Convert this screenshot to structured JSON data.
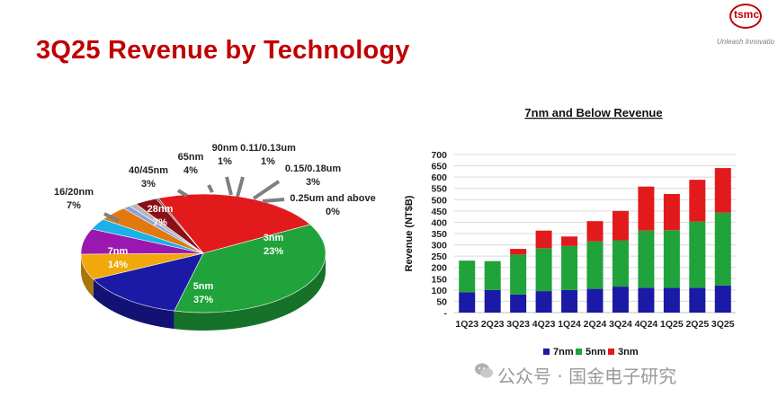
{
  "slide": {
    "title": "3Q25 Revenue by Technology",
    "logo_text": "tsmc",
    "logo_tagline": "Unleash Innovatio",
    "accent_color": "#c00000"
  },
  "watermark": {
    "text": "公众号 · 国金电子研究",
    "icon": "wechat-icon"
  },
  "chart_data": [
    {
      "type": "pie",
      "title": "",
      "slices": [
        {
          "label": "3nm",
          "pct_label": "23%",
          "value": 23,
          "color": "#e31a1c"
        },
        {
          "label": "5nm",
          "pct_label": "37%",
          "value": 37,
          "color": "#1fa33a"
        },
        {
          "label": "7nm",
          "pct_label": "14%",
          "value": 14,
          "color": "#1a1aa6"
        },
        {
          "label": "16/20nm",
          "pct_label": "7%",
          "value": 7,
          "color": "#f0a80a"
        },
        {
          "label": "28nm",
          "pct_label": "7%",
          "value": 7,
          "color": "#9b18b0"
        },
        {
          "label": "40/45nm",
          "pct_label": "3%",
          "value": 3,
          "color": "#1ab0e8"
        },
        {
          "label": "65nm",
          "pct_label": "4%",
          "value": 4,
          "color": "#e07a10"
        },
        {
          "label": "90nm",
          "pct_label": "1%",
          "value": 1,
          "color": "#8aa0e0"
        },
        {
          "label": "0.11/0.13um",
          "pct_label": "1%",
          "value": 1,
          "color": "#b8b8b8"
        },
        {
          "label": "0.15/0.18um",
          "pct_label": "3%",
          "value": 3,
          "color": "#8c0f16"
        },
        {
          "label": "0.25um and above",
          "pct_label": "0%",
          "value": 0.3,
          "color": "#555555"
        }
      ]
    },
    {
      "type": "bar",
      "stacked": true,
      "title": "7nm and Below Revenue",
      "ylabel": "Revenue (NT$B)",
      "xlabel": "",
      "ylim": [
        0,
        700
      ],
      "yticks": [
        "-",
        "50",
        "100",
        "150",
        "200",
        "250",
        "300",
        "350",
        "400",
        "450",
        "500",
        "550",
        "600",
        "650",
        "700"
      ],
      "categories": [
        "1Q23",
        "2Q23",
        "3Q23",
        "4Q23",
        "1Q24",
        "2Q24",
        "3Q24",
        "4Q24",
        "1Q25",
        "2Q25",
        "3Q25"
      ],
      "series": [
        {
          "name": "7nm",
          "color": "#1a1aa6",
          "values": [
            90,
            100,
            80,
            95,
            100,
            105,
            115,
            110,
            110,
            110,
            120
          ]
        },
        {
          "name": "5nm",
          "color": "#1fa33a",
          "values": [
            140,
            128,
            177,
            190,
            195,
            210,
            205,
            253,
            255,
            293,
            323
          ]
        },
        {
          "name": "3nm",
          "color": "#e31a1c",
          "values": [
            0,
            0,
            25,
            78,
            42,
            90,
            130,
            195,
            160,
            185,
            197
          ]
        }
      ],
      "grid": true,
      "legend_position": "bottom"
    }
  ]
}
